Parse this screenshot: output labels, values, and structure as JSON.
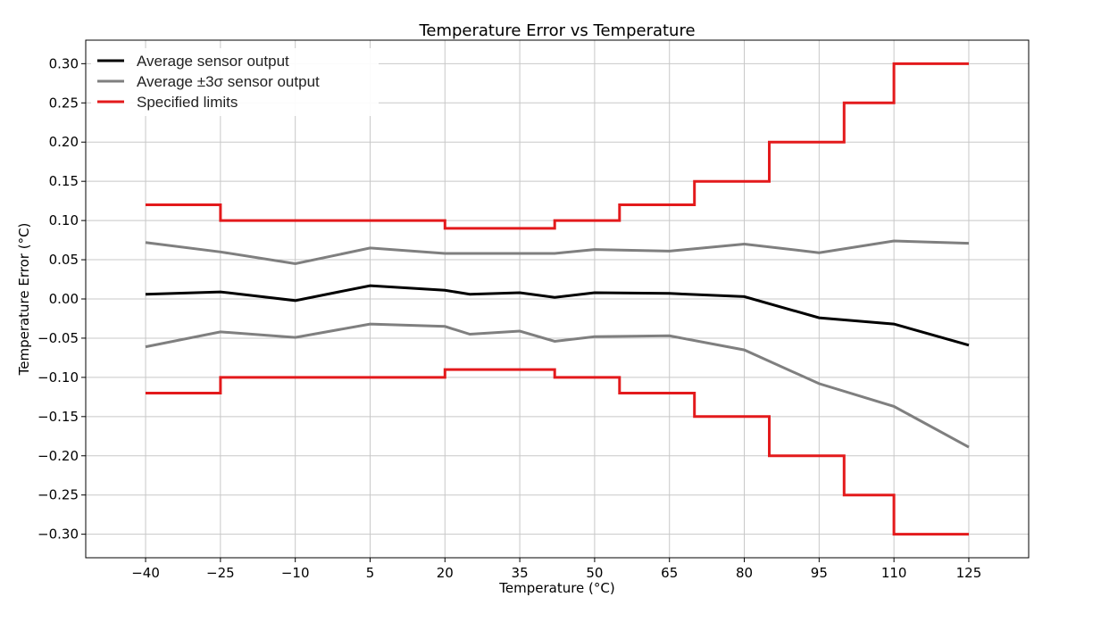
{
  "chart_data": {
    "type": "line",
    "title": "Temperature Error vs Temperature",
    "xlabel": "Temperature (°C)",
    "ylabel": "Temperature Error  (°C)",
    "xlim": [
      -52,
      137
    ],
    "ylim": [
      -0.33,
      0.33
    ],
    "grid": true,
    "legend_position": "top-left",
    "x_ticks": [
      -40,
      -25,
      -10,
      5,
      20,
      35,
      50,
      65,
      80,
      95,
      110,
      125
    ],
    "x_tick_labels": [
      "−40",
      "−25",
      "−10",
      "5",
      "20",
      "35",
      "50",
      "65",
      "80",
      "95",
      "110",
      "125"
    ],
    "y_ticks": [
      0.3,
      0.25,
      0.2,
      0.15,
      0.1,
      0.05,
      0.0,
      -0.05,
      -0.1,
      -0.15,
      -0.2,
      -0.25,
      -0.3
    ],
    "y_tick_labels": [
      "0.30",
      "0.25",
      "0.20",
      "0.15",
      "0.10",
      "0.05",
      "0.00",
      "−0.05",
      "−0.10",
      "−0.15",
      "−0.20",
      "−0.25",
      "−0.30"
    ],
    "legend": [
      {
        "label": "Average sensor output",
        "color": "#000000"
      },
      {
        "label": "Average ±3σ sensor output",
        "color": "#7f7f7f"
      },
      {
        "label": "Specified limits",
        "color": "#e31a1c"
      }
    ],
    "series": [
      {
        "role": "average",
        "color": "#000000",
        "stroke_width": 3,
        "step": false,
        "x": [
          -40,
          -25,
          -10,
          5,
          20,
          25,
          35,
          42,
          50,
          65,
          80,
          95,
          110,
          125
        ],
        "y": [
          0.006,
          0.009,
          -0.002,
          0.017,
          0.011,
          0.006,
          0.008,
          0.002,
          0.008,
          0.007,
          0.003,
          -0.024,
          -0.032,
          -0.059
        ]
      },
      {
        "role": "plus3sigma",
        "color": "#7f7f7f",
        "stroke_width": 3,
        "step": false,
        "x": [
          -40,
          -25,
          -10,
          5,
          20,
          35,
          42,
          50,
          65,
          80,
          95,
          110,
          125
        ],
        "y": [
          0.072,
          0.06,
          0.045,
          0.065,
          0.058,
          0.058,
          0.058,
          0.063,
          0.061,
          0.07,
          0.059,
          0.074,
          0.071
        ]
      },
      {
        "role": "minus3sigma",
        "color": "#7f7f7f",
        "stroke_width": 3,
        "step": false,
        "x": [
          -40,
          -25,
          -10,
          5,
          20,
          25,
          35,
          42,
          50,
          65,
          80,
          95,
          110,
          125
        ],
        "y": [
          -0.061,
          -0.042,
          -0.049,
          -0.032,
          -0.035,
          -0.045,
          -0.041,
          -0.054,
          -0.048,
          -0.047,
          -0.065,
          -0.108,
          -0.137,
          -0.189
        ]
      },
      {
        "role": "upper-limit",
        "color": "#e31a1c",
        "stroke_width": 3,
        "step": true,
        "x": [
          -40,
          -25,
          20,
          42,
          55,
          70,
          85,
          100,
          110,
          125
        ],
        "y": [
          0.12,
          0.1,
          0.09,
          0.1,
          0.12,
          0.15,
          0.2,
          0.25,
          0.3,
          0.3
        ]
      },
      {
        "role": "lower-limit",
        "color": "#e31a1c",
        "stroke_width": 3,
        "step": true,
        "x": [
          -40,
          -25,
          20,
          42,
          55,
          70,
          85,
          100,
          110,
          125
        ],
        "y": [
          -0.12,
          -0.1,
          -0.09,
          -0.1,
          -0.12,
          -0.15,
          -0.2,
          -0.25,
          -0.3,
          -0.3
        ]
      }
    ]
  }
}
